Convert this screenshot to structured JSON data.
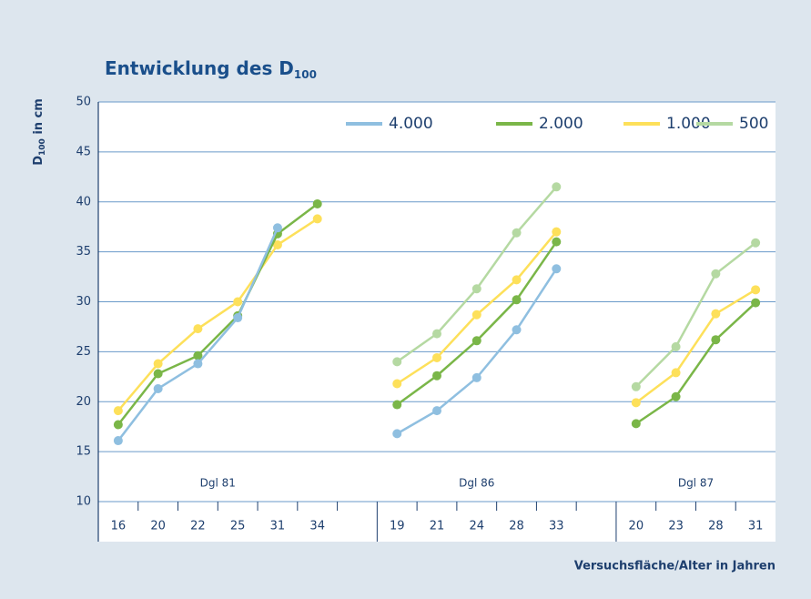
{
  "chart_data": {
    "type": "line",
    "title": {
      "text": "Entwicklung des D",
      "sub": "100"
    },
    "y_label": {
      "text": "D",
      "sub": "100",
      "rest": " in cm"
    },
    "x_label": "Versuchsfläche/Alter in Jahren",
    "categories": [
      "16",
      "20",
      "22",
      "25",
      "31",
      "34",
      null,
      "19",
      "21",
      "24",
      "28",
      "33",
      null,
      "20",
      "23",
      "28",
      "31"
    ],
    "groups": [
      {
        "label": "Dgl 81",
        "span": [
          0,
          5
        ]
      },
      {
        "label": "Dgl 86",
        "span": [
          7,
          11
        ]
      },
      {
        "label": "Dgl 87",
        "span": [
          13,
          16
        ]
      }
    ],
    "series": [
      {
        "name": "4.000",
        "color": "#8fbfe0",
        "values": [
          16.1,
          21.3,
          23.8,
          28.4,
          37.4,
          null,
          null,
          16.8,
          19.1,
          22.4,
          27.2,
          33.3,
          null,
          null,
          null,
          null,
          null
        ]
      },
      {
        "name": "2.000",
        "color": "#7ab648",
        "values": [
          17.7,
          22.8,
          24.6,
          28.6,
          36.8,
          39.8,
          null,
          19.7,
          22.6,
          26.1,
          30.2,
          36.0,
          null,
          17.8,
          20.5,
          26.2,
          29.9
        ]
      },
      {
        "name": "1.000",
        "color": "#fde05a",
        "values": [
          19.1,
          23.8,
          27.3,
          30.0,
          35.7,
          38.3,
          null,
          21.8,
          24.4,
          28.7,
          32.2,
          37.0,
          null,
          19.9,
          22.9,
          28.8,
          31.2
        ]
      },
      {
        "name": "500",
        "color": "#b5d9a2",
        "values": [
          null,
          null,
          null,
          null,
          null,
          null,
          null,
          24.0,
          26.8,
          31.3,
          36.9,
          41.5,
          null,
          21.5,
          25.5,
          32.8,
          35.9
        ]
      }
    ],
    "ylim": [
      10,
      50
    ],
    "yticks": [
      10,
      15,
      20,
      25,
      30,
      35,
      40,
      45,
      50
    ],
    "grid": true,
    "legend": "top-right"
  }
}
